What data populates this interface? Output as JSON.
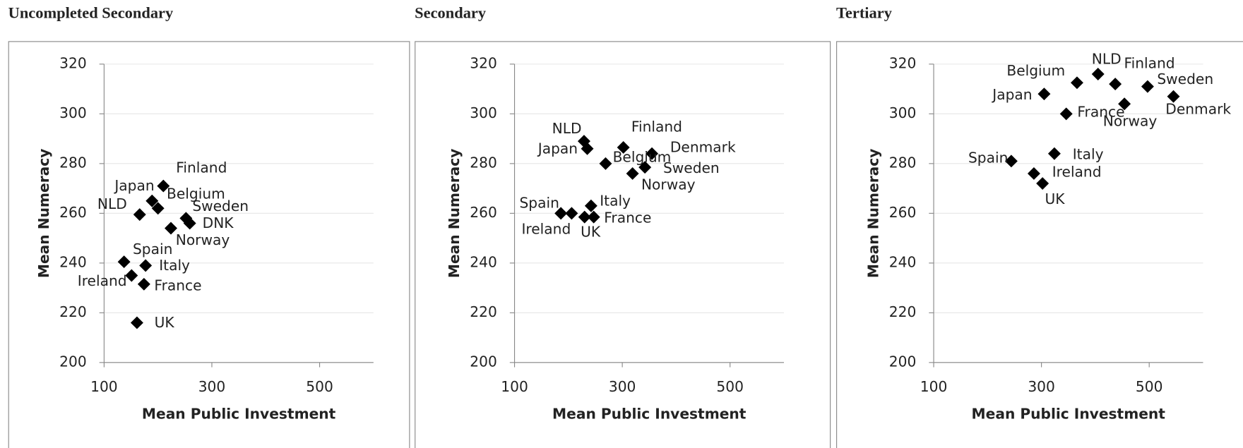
{
  "chart_data": [
    {
      "type": "scatter",
      "title": "Uncompleted Secondary",
      "x_label": "Mean Public Investment",
      "y_label": "Mean Numeracy",
      "point_labels": [
        "Finland",
        "Japan",
        "Belgium",
        "NLD",
        "Sweden",
        "DNK",
        "Norway",
        "Spain",
        "Italy",
        "Ireland",
        "France",
        "UK"
      ],
      "x": [
        210,
        189,
        200,
        166,
        252,
        259,
        224,
        137,
        177,
        151,
        174,
        161
      ],
      "values": [
        271,
        265,
        262,
        259.5,
        258,
        256,
        254,
        240.5,
        239,
        235,
        231.5,
        216
      ],
      "color": "#000000",
      "xlim": [
        100,
        600
      ],
      "ylim": [
        200,
        320
      ],
      "xticks": [
        100,
        300,
        500
      ],
      "yticks": [
        200,
        220,
        240,
        260,
        280,
        300,
        320
      ],
      "grid": true
    },
    {
      "type": "scatter",
      "title": "Secondary",
      "x_label": "Mean Public Investment",
      "y_label": "Mean Numeracy",
      "point_labels": [
        "NLD",
        "Japan",
        "Finland",
        "Denmark",
        "Belgium",
        "Sweden",
        "Norway",
        "Spain",
        "Ireland",
        "Italy",
        "UK",
        "France"
      ],
      "x": [
        229,
        235,
        302,
        355,
        269,
        342,
        319,
        186,
        206,
        242,
        230,
        247
      ],
      "values": [
        289,
        286,
        286.5,
        284,
        280,
        278.5,
        276,
        260,
        260,
        263,
        258.5,
        258.5
      ],
      "color": "#000000",
      "xlim": [
        100,
        600
      ],
      "ylim": [
        200,
        320
      ],
      "xticks": [
        100,
        300,
        500
      ],
      "yticks": [
        200,
        220,
        240,
        260,
        280,
        300,
        320
      ],
      "grid": true
    },
    {
      "type": "scatter",
      "title": "Tertiary",
      "x_label": "Mean Public Investment",
      "y_label": "Mean Numeracy",
      "point_labels": [
        "NLD",
        "Finland",
        "Belgium",
        "Sweden",
        "Japan",
        "Denmark",
        "Norway",
        "France",
        "Italy",
        "Spain",
        "Ireland",
        "UK"
      ],
      "x": [
        405,
        437,
        366,
        497,
        305,
        545,
        454,
        346,
        324,
        244,
        286,
        302
      ],
      "values": [
        316,
        312,
        312.5,
        311,
        308,
        307,
        304,
        300,
        284,
        281,
        276,
        272
      ],
      "color": "#000000",
      "xlim": [
        100,
        600
      ],
      "ylim": [
        200,
        320
      ],
      "xticks": [
        100,
        300,
        500
      ],
      "yticks": [
        200,
        220,
        240,
        260,
        280,
        300,
        320
      ],
      "grid": true
    }
  ]
}
